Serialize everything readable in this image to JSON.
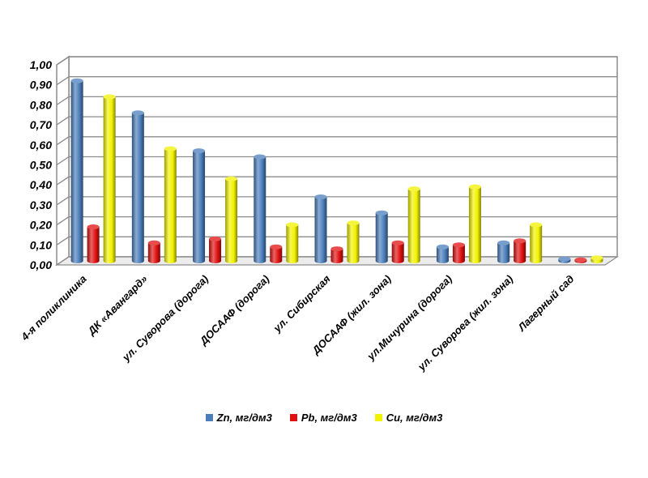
{
  "chart_data": {
    "type": "bar",
    "categories": [
      "4-я поликлиника",
      "ДК «Авангард»",
      "ул. Суворова (дорога)",
      "ДОСААФ (дорога)",
      "ул. Сибирская",
      "ДОСААФ (жил. зона)",
      "ул.Мичурина (дорога)",
      "ул. Сувороеа (жил. зона)",
      "Лагерный сад"
    ],
    "series": [
      {
        "name": "Zn, мг/дм3",
        "symbol": "Zn",
        "unit": ", мг/дм3",
        "color": "#4A7EBB",
        "values": [
          0.9,
          0.74,
          0.55,
          0.52,
          0.32,
          0.24,
          0.07,
          0.09,
          0.01
        ]
      },
      {
        "name": "Pb, мг/дм3",
        "symbol": "Pb",
        "unit": ", мг/дм3",
        "color": "#E01010",
        "values": [
          0.17,
          0.09,
          0.11,
          0.07,
          0.06,
          0.09,
          0.08,
          0.1,
          0.005
        ]
      },
      {
        "name": "Cu, мг/дм3",
        "symbol": "Cu",
        "unit": ", мг/дм3",
        "color": "#F2F200",
        "values": [
          0.82,
          0.56,
          0.41,
          0.18,
          0.19,
          0.36,
          0.37,
          0.18,
          0.015
        ]
      }
    ],
    "ylim": [
      0,
      1.0
    ],
    "yticks": [
      "0,00",
      "0,10",
      "0,20",
      "0,30",
      "0,40",
      "0,50",
      "0,60",
      "0,70",
      "0,80",
      "0,90",
      "1,00"
    ],
    "title": "",
    "xlabel": "",
    "ylabel": "",
    "grid": true,
    "legend_position": "bottom"
  }
}
